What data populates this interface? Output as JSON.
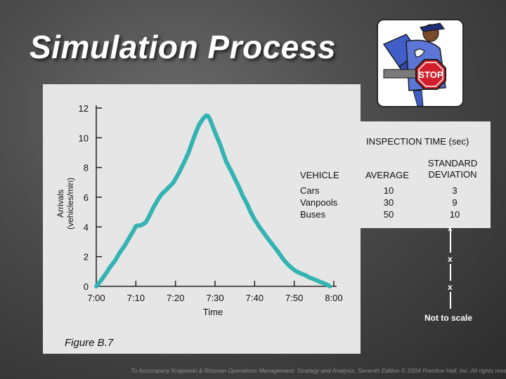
{
  "slide": {
    "title": "Simulation Process",
    "figure_label": "Figure B.7",
    "credit": "To Accompany Krajewski & Ritzman Operations Management: Strategy and Analysis, Seventh Edition © 2004 Prentice Hall, Inc. All rights reserved.",
    "scale_note": "Not to scale",
    "scale_marks": [
      "x",
      "x",
      "x"
    ],
    "clipart": {
      "sign_text": "STOP",
      "icon": "police-officer-stop-sign-icon",
      "sign_color": "#d21f2b"
    }
  },
  "inspection_table": {
    "title": "INSPECTION TIME (sec)",
    "col_vehicle": "VEHICLE",
    "col_average": "AVERAGE",
    "col_sd": "STANDARD\nDEVIATION",
    "rows": [
      {
        "vehicle": "Cars",
        "average": "10",
        "sd": "3"
      },
      {
        "vehicle": "Vanpools",
        "average": "30",
        "sd": "9"
      },
      {
        "vehicle": "Buses",
        "average": "50",
        "sd": "10"
      }
    ]
  },
  "chart_data": {
    "type": "line",
    "title": "",
    "xlabel": "Time",
    "ylabel": "Arrivals\n(vehicles/min)",
    "x_ticks": [
      "7:00",
      "7:10",
      "7:20",
      "7:30",
      "7:40",
      "7:50",
      "8:00"
    ],
    "y_ticks": [
      "0",
      "2",
      "4",
      "6",
      "8",
      "10",
      "12"
    ],
    "x_range_minutes": [
      0,
      60
    ],
    "ylim": [
      0,
      12
    ],
    "line_color": "#34b3b3",
    "series": [
      {
        "x": [
          0,
          1.2,
          2.4,
          3.5,
          4.8,
          6.0,
          7.2,
          8.4,
          9.5,
          10.0,
          10.5,
          11.2,
          12.5,
          13.5,
          14.3,
          15.5,
          16.5,
          17.7,
          19.5,
          21.0,
          22.0,
          23.3,
          24.5,
          25.2,
          26.0,
          27.0,
          27.8,
          28.3,
          28.8,
          29.5,
          30.4,
          31.2,
          32.0,
          32.8,
          33.8,
          34.9,
          36.0,
          37.0,
          38.0,
          39.0,
          40.0,
          41.2,
          42.3,
          43.4,
          44.7,
          46.0,
          47.3,
          48.3,
          49.3,
          50.3,
          51.0,
          51.8,
          52.8,
          53.8,
          55.3,
          56.5,
          58.0,
          59.0
        ],
        "y": [
          0.0,
          0.4,
          0.85,
          1.3,
          1.75,
          2.3,
          2.75,
          3.3,
          3.8,
          4.05,
          4.1,
          4.1,
          4.3,
          4.8,
          5.25,
          5.8,
          6.2,
          6.5,
          7.0,
          7.7,
          8.25,
          9.0,
          9.9,
          10.4,
          10.9,
          11.3,
          11.5,
          11.45,
          11.2,
          10.7,
          10.1,
          9.6,
          9.0,
          8.4,
          7.9,
          7.3,
          6.7,
          6.1,
          5.6,
          5.0,
          4.5,
          4.0,
          3.6,
          3.2,
          2.75,
          2.3,
          1.8,
          1.5,
          1.25,
          1.05,
          0.95,
          0.85,
          0.75,
          0.6,
          0.45,
          0.3,
          0.15,
          0.0
        ]
      }
    ]
  }
}
